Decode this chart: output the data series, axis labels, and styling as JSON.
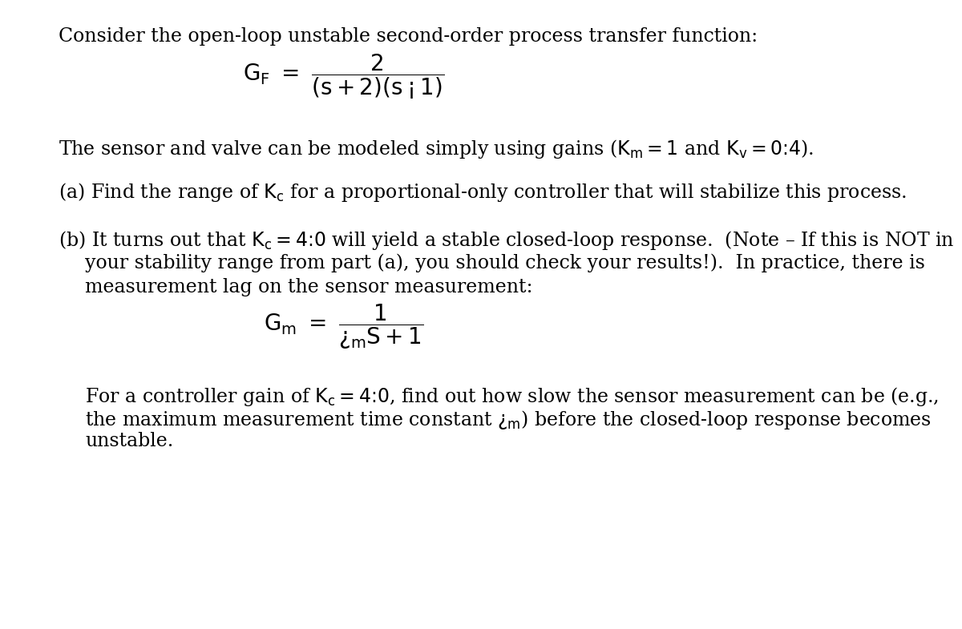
{
  "background_color": "#ffffff",
  "fig_width": 10.8,
  "fig_height": 9.94,
  "text_color": "#000000",
  "font_family": "DejaVu Serif",
  "intro_text": "Consider the open-loop unstable second-order process transfer function:",
  "line2_text": "The sensor and valve can be modeled simply using gains ($\\mathrm{K_m} = 1$ and $\\mathrm{K_v} = 0.4$).",
  "line3_text": "(a) Find the range of $\\mathrm{K_c}$ for a proportional-only controller that will stabilize this process.",
  "line4a_text": "(b) It turns out that $\\mathrm{K_c} = 4.0$ will yield a stable closed-loop response.  (Note – If this is NOT in",
  "line4b_text": "your stability range from part (a), you should check your results!).  In practice, there is",
  "line4c_text": "measurement lag on the sensor measurement:",
  "line5a_text": "For a controller gain of $\\mathrm{K_c} = 4.0$, find out how slow the sensor measurement can be (e.g.,",
  "line5b_text": "the maximum measurement time constant $\\tau_\\mathrm{m}$) before the closed-loop response becomes",
  "line5c_text": "unstable.",
  "eq1": "$G_F \\ = \\ \\dfrac{2}{(s+2)(s-1)}$",
  "eq2": "$G_m \\ = \\ \\dfrac{1}{\\tau_m S+1}$",
  "main_fontsize": 17,
  "eq_fontsize": 20
}
